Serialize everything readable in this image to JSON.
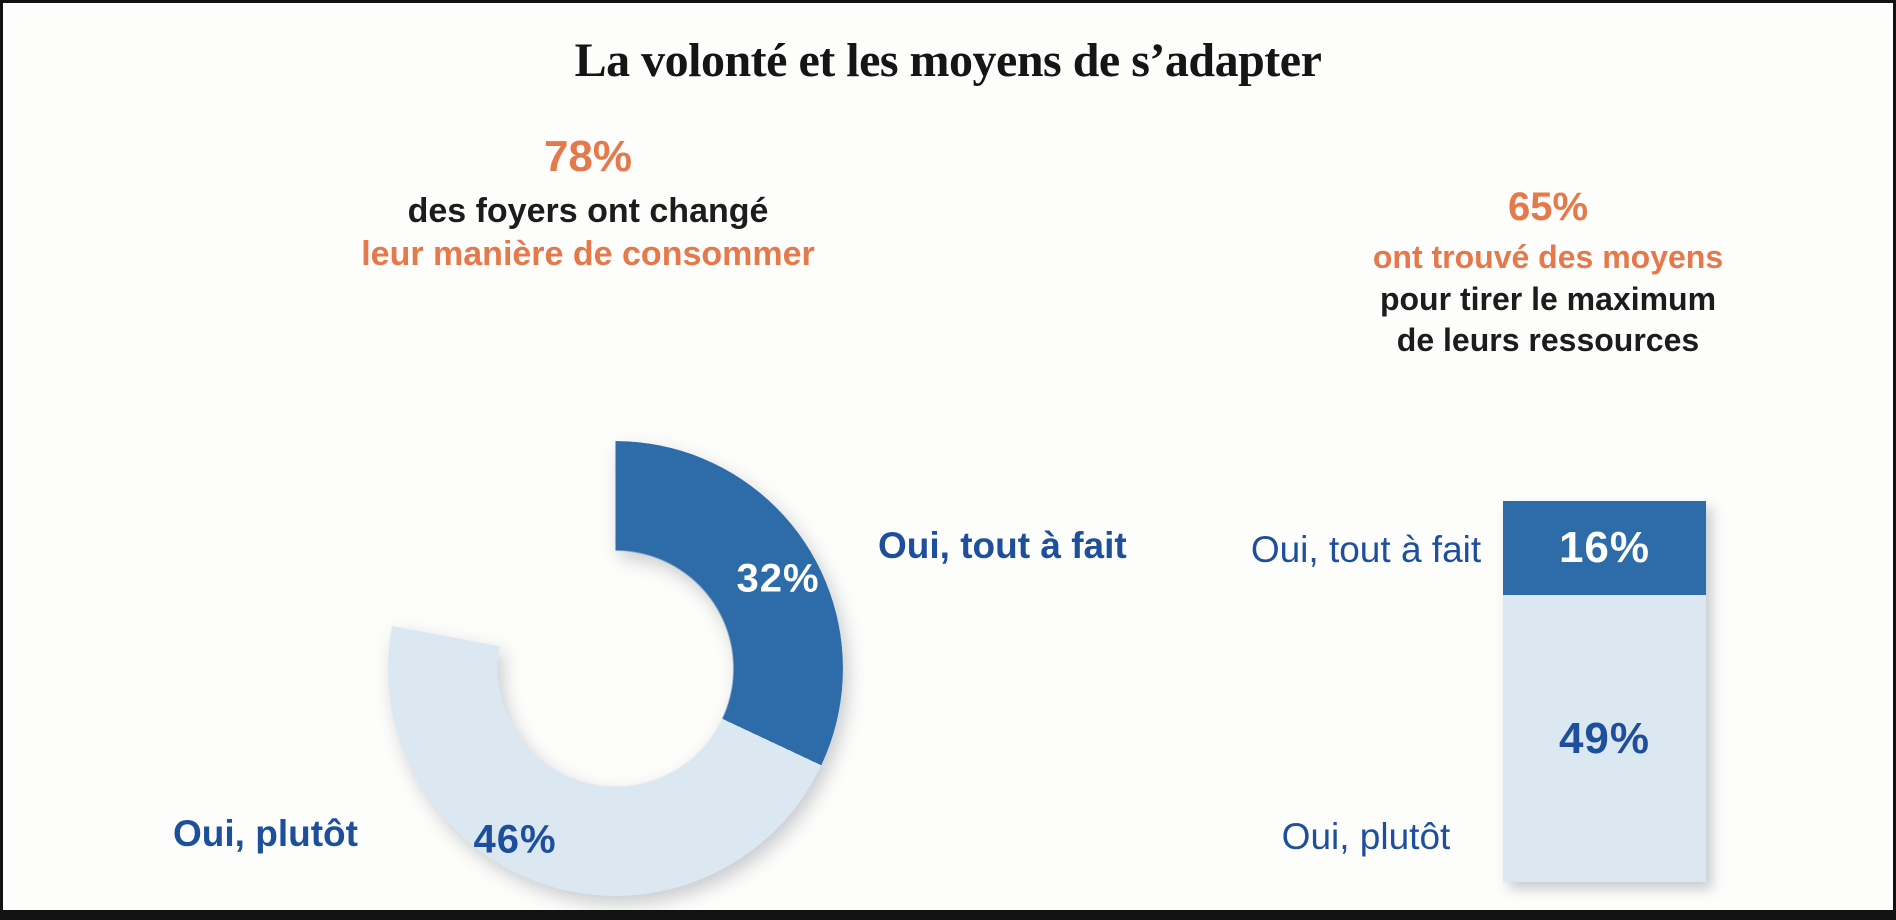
{
  "page": {
    "title": "La volonté et les moyens de s’adapter",
    "background": "#FDFDFB",
    "border_color": "#121212"
  },
  "colors": {
    "orange": "#E5794B",
    "dark_blue": "#2E6CA9",
    "light_blue": "#DCE8F1",
    "navy_text": "#1E4F9C",
    "black_text": "#1C1C1C",
    "white_text": "#FFFFFF"
  },
  "chart_data": [
    {
      "type": "pie",
      "subtype": "donut",
      "position": "left",
      "headline": {
        "value": "78%",
        "line2": "des foyers ont changé",
        "line3": "leur manière de consommer"
      },
      "total": 100,
      "shown_total_percent": 78,
      "remainder_percent_unshown": 22,
      "start_angle_deg": 0,
      "direction": "clockwise",
      "segments": [
        {
          "label": "Oui, tout à fait",
          "value": 32,
          "value_label": "32%",
          "color": "#2E6CA9",
          "value_label_color": "#FFFFFF"
        },
        {
          "label": "Oui, plutôt",
          "value": 46,
          "value_label": "46%",
          "color": "#DCE8F1",
          "value_label_color": "#1E4F9C"
        }
      ]
    },
    {
      "type": "bar",
      "subtype": "stacked-vertical-single-bar",
      "position": "right",
      "headline": {
        "value": "65%",
        "line2": "ont trouvé des moyens",
        "line3": "pour tirer le maximum",
        "line4": "de leurs ressources"
      },
      "shown_total_percent": 65,
      "segments": [
        {
          "label": "Oui, tout à fait",
          "value": 16,
          "value_label": "16%",
          "color": "#2E6CA9",
          "value_label_color": "#FFFFFF"
        },
        {
          "label": "Oui, plutôt",
          "value": 49,
          "value_label": "49%",
          "color": "#DCE8F1",
          "value_label_color": "#1E4F9C"
        }
      ]
    }
  ]
}
